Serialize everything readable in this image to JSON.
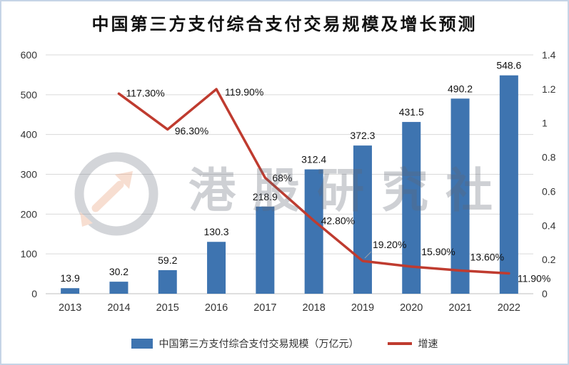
{
  "title": "中国第三方支付综合支付交易规模及增长预测",
  "watermark": {
    "text": "港股研究社",
    "logo": "magnifier-arrow-logo"
  },
  "legend": {
    "bar_label": "中国第三方支付综合支付交易规模（万亿元）",
    "line_label": "增速"
  },
  "colors": {
    "bar": "#3e74b0",
    "line": "#bf3b2f",
    "grid": "#d9d9d9",
    "axis_line": "#bfbfbf",
    "axis_text": "#333333",
    "label_text": "#111111",
    "border": "#c6d4e6",
    "watermark_grey": "#5f6673",
    "watermark_orange": "#e8936a"
  },
  "chart_data": {
    "type": "combo-bar-line",
    "title": "中国第三方支付综合支付交易规模及增长预测",
    "categories": [
      "2013",
      "2014",
      "2015",
      "2016",
      "2017",
      "2018",
      "2019",
      "2020",
      "2021",
      "2022"
    ],
    "series": [
      {
        "name": "中国第三方支付综合支付交易规模（万亿元）",
        "type": "bar",
        "axis": "left",
        "values": [
          13.9,
          30.2,
          59.2,
          130.3,
          218.9,
          312.4,
          372.3,
          431.5,
          490.2,
          548.6
        ],
        "labels": [
          "13.9",
          "30.2",
          "59.2",
          "130.3",
          "218.9",
          "312.4",
          "372.3",
          "431.5",
          "490.2",
          "548.6"
        ]
      },
      {
        "name": "增速",
        "type": "line",
        "axis": "right",
        "values_percent": [
          null,
          117.3,
          96.3,
          119.9,
          68,
          42.8,
          19.2,
          15.9,
          13.6,
          11.9
        ],
        "labels": [
          null,
          "117.30%",
          "96.30%",
          "119.90%",
          "68%",
          "42.80%",
          "19.20%",
          "15.90%",
          "13.60%",
          "11.90%"
        ]
      }
    ],
    "left_axis": {
      "min": 0,
      "max": 600,
      "step": 100,
      "ticks": [
        "0",
        "100",
        "200",
        "300",
        "400",
        "500",
        "600"
      ]
    },
    "right_axis": {
      "min": 0,
      "max": 1.4,
      "step": 0.2,
      "ticks": [
        "0",
        "0.2",
        "0.4",
        "0.6",
        "0.8",
        "1",
        "1.2",
        "1.4"
      ]
    },
    "grid": true,
    "legend_position": "bottom"
  }
}
